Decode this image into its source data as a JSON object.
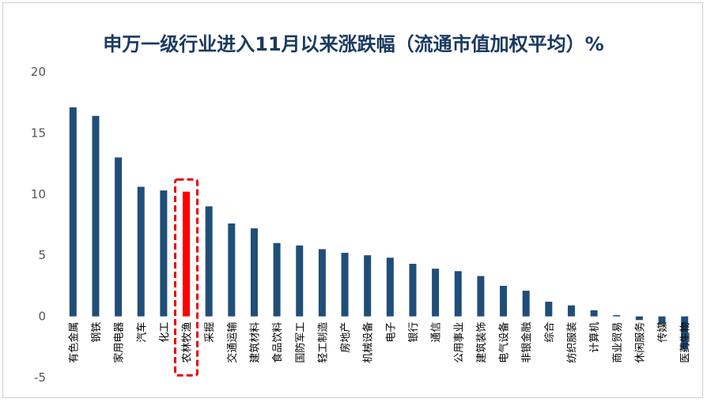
{
  "chart_data": {
    "type": "bar",
    "title": "申万一级行业进入11月以来涨跌幅（流通市值加权平均）%",
    "xlabel": "",
    "ylabel": "",
    "ylim": [
      -5,
      20
    ],
    "yticks": [
      20,
      15,
      10,
      5,
      0,
      -5
    ],
    "grid": false,
    "categories": [
      "有色金属",
      "钢铁",
      "家用电器",
      "汽车",
      "化工",
      "农林牧渔",
      "采掘",
      "交通运输",
      "建筑材料",
      "食品饮料",
      "国防军工",
      "轻工制造",
      "房地产",
      "机械设备",
      "电子",
      "银行",
      "通信",
      "公用事业",
      "建筑装饰",
      "电气设备",
      "非银金融",
      "综合",
      "纺织服装",
      "计算机",
      "商业贸易",
      "休闲服务",
      "传媒",
      "医药生物"
    ],
    "values": [
      17.1,
      16.4,
      13.0,
      10.6,
      10.3,
      10.2,
      9.0,
      7.6,
      7.2,
      6.0,
      5.8,
      5.5,
      5.2,
      5.0,
      4.8,
      4.3,
      3.9,
      3.7,
      3.3,
      2.5,
      2.1,
      1.2,
      0.9,
      0.5,
      0.1,
      -0.3,
      -0.6,
      -2.7
    ],
    "highlight_category": "农林牧渔",
    "bar_color": "#1f4e79",
    "highlight_color": "#ff0000",
    "highlight_box_color": "#e8000b"
  }
}
